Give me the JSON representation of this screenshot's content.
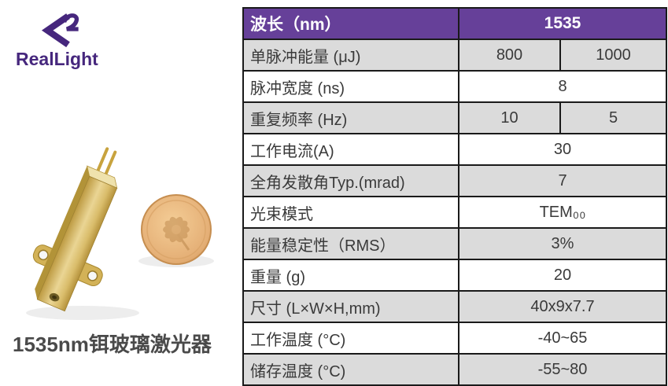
{
  "logo": {
    "brand": "RealLight"
  },
  "photo": {
    "module_alt": "gold erbium glass laser module with two pins, mounting flange and output aperture",
    "coin_alt": "gold coin with flower design for size comparison"
  },
  "caption": "1535nm铒玻璃激光器",
  "table": {
    "header": {
      "label": "波长（nm）",
      "value": "1535"
    },
    "rows": [
      {
        "label": "单脉冲能量 (μJ)",
        "values": [
          "800",
          "1000"
        ],
        "shaded": true
      },
      {
        "label": "脉冲宽度 (ns)",
        "values": [
          "8"
        ],
        "shaded": false
      },
      {
        "label": "重复频率 (Hz)",
        "values": [
          "10",
          "5"
        ],
        "shaded": true
      },
      {
        "label": "工作电流(A)",
        "values": [
          "30"
        ],
        "shaded": false
      },
      {
        "label": "全角发散角Typ.(mrad)",
        "values": [
          "7"
        ],
        "shaded": true
      },
      {
        "label": "光束模式",
        "values": [
          "TEM₀₀"
        ],
        "shaded": false
      },
      {
        "label": "能量稳定性（RMS）",
        "values": [
          "3%"
        ],
        "shaded": true
      },
      {
        "label": "重量 (g)",
        "values": [
          "20"
        ],
        "shaded": false
      },
      {
        "label": "尺寸 (L×W×H,mm)",
        "values": [
          "40x9x7.7"
        ],
        "shaded": true
      },
      {
        "label": "工作温度 (°C)",
        "values": [
          "-40~65"
        ],
        "shaded": false
      },
      {
        "label": "储存温度 (°C)",
        "values": [
          "-55~80"
        ],
        "shaded": true
      }
    ]
  },
  "colors": {
    "accent": "#664099",
    "logo_purple": "#46277D",
    "row_shaded": "#DBDBDB",
    "border": "#1A1A1A",
    "text": "#3A3A3A"
  }
}
